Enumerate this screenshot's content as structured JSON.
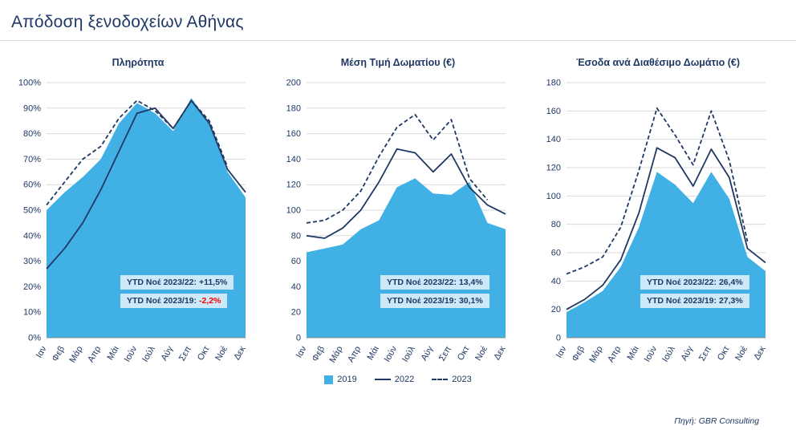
{
  "header": {
    "title": "Απόδοση ξενοδοχείων Αθήνας"
  },
  "months": [
    "Ιαν",
    "Φεβ",
    "Μάρ",
    "Απρ",
    "Μάι",
    "Ιούν",
    "Ιούλ",
    "Αύγ",
    "Σεπ",
    "Οκτ",
    "Νοέ",
    "Δεκ"
  ],
  "colors": {
    "navy": "#1F3864",
    "area_blue": "#41B0E5",
    "grid": "#D9D9D9",
    "annotation_bg": "#CBE9F9",
    "red": "#FF0000"
  },
  "legend": {
    "items": [
      {
        "label": "2019",
        "style": "area"
      },
      {
        "label": "2022",
        "style": "solid"
      },
      {
        "label": "2023",
        "style": "dashed"
      }
    ]
  },
  "footer": {
    "source": "Πηγή: GBR Consulting"
  },
  "chart_data": [
    {
      "type": "area",
      "name": "occupancy",
      "title": "Πληρότητα",
      "ymax": 100,
      "ylim": [
        0,
        100
      ],
      "grid": true,
      "yticks": [
        {
          "v": 0,
          "label": "0%"
        },
        {
          "v": 10,
          "label": "10%"
        },
        {
          "v": 20,
          "label": "20%"
        },
        {
          "v": 30,
          "label": "30%"
        },
        {
          "v": 40,
          "label": "40%"
        },
        {
          "v": 50,
          "label": "50%"
        },
        {
          "v": 60,
          "label": "60%"
        },
        {
          "v": 70,
          "label": "70%"
        },
        {
          "v": 80,
          "label": "80%"
        },
        {
          "v": 90,
          "label": "90%"
        },
        {
          "v": 100,
          "label": "100%"
        }
      ],
      "series": [
        {
          "name": "2019",
          "type": "area",
          "values": [
            50,
            57,
            63,
            70,
            84,
            92,
            88,
            81,
            94,
            84,
            65,
            55
          ]
        },
        {
          "name": "2022",
          "type": "line",
          "values": [
            27,
            35,
            45,
            58,
            73,
            88,
            90,
            82,
            93,
            84,
            66,
            57
          ]
        },
        {
          "name": "2023",
          "type": "dashed",
          "values": [
            52,
            61,
            70,
            75,
            86,
            93,
            89,
            82,
            93,
            85,
            67
          ]
        }
      ],
      "annotations": [
        {
          "label": "YTD Νοέ 2023/22:",
          "value": "+11,5%",
          "value_color": "#1F3864"
        },
        {
          "label": "YTD Νοέ 2023/19:",
          "value": "-2,2%",
          "value_color": "#FF0000"
        }
      ]
    },
    {
      "type": "area",
      "name": "adr",
      "title": "Μέση Τιμή Δωματίου (€)",
      "ymax": 200,
      "ylim": [
        0,
        200
      ],
      "grid": true,
      "yticks": [
        {
          "v": 0,
          "label": "0"
        },
        {
          "v": 20,
          "label": "20"
        },
        {
          "v": 40,
          "label": "40"
        },
        {
          "v": 60,
          "label": "60"
        },
        {
          "v": 80,
          "label": "80"
        },
        {
          "v": 100,
          "label": "100"
        },
        {
          "v": 120,
          "label": "120"
        },
        {
          "v": 140,
          "label": "140"
        },
        {
          "v": 160,
          "label": "160"
        },
        {
          "v": 180,
          "label": "180"
        },
        {
          "v": 200,
          "label": "200"
        }
      ],
      "series": [
        {
          "name": "2019",
          "type": "area",
          "values": [
            67,
            70,
            73,
            85,
            92,
            118,
            125,
            113,
            112,
            122,
            90,
            85
          ]
        },
        {
          "name": "2022",
          "type": "line",
          "values": [
            80,
            78,
            86,
            100,
            122,
            148,
            145,
            130,
            144,
            118,
            104,
            97
          ]
        },
        {
          "name": "2023",
          "type": "dashed",
          "values": [
            90,
            92,
            100,
            115,
            142,
            165,
            175,
            155,
            171,
            125,
            108
          ]
        }
      ],
      "annotations": [
        {
          "label": "YTD Νοέ 2023/22:",
          "value": "13,4%",
          "value_color": "#1F3864"
        },
        {
          "label": "YTD Νοέ 2023/19:",
          "value": "30,1%",
          "value_color": "#1F3864"
        }
      ]
    },
    {
      "type": "area",
      "name": "revpar",
      "title": "Έσοδα ανά Διαθέσιμο Δωμάτιο (€)",
      "ymax": 180,
      "ylim": [
        0,
        180
      ],
      "grid": true,
      "yticks": [
        {
          "v": 0,
          "label": "0"
        },
        {
          "v": 20,
          "label": "20"
        },
        {
          "v": 40,
          "label": "40"
        },
        {
          "v": 60,
          "label": "60"
        },
        {
          "v": 80,
          "label": "80"
        },
        {
          "v": 100,
          "label": "100"
        },
        {
          "v": 120,
          "label": "120"
        },
        {
          "v": 140,
          "label": "140"
        },
        {
          "v": 160,
          "label": "160"
        },
        {
          "v": 180,
          "label": "180"
        }
      ],
      "series": [
        {
          "name": "2019",
          "type": "area",
          "values": [
            18,
            25,
            33,
            50,
            78,
            117,
            108,
            95,
            117,
            98,
            57,
            47
          ]
        },
        {
          "name": "2022",
          "type": "line",
          "values": [
            20,
            27,
            37,
            55,
            88,
            134,
            127,
            107,
            133,
            113,
            63,
            53
          ]
        },
        {
          "name": "2023",
          "type": "dashed",
          "values": [
            45,
            50,
            57,
            78,
            118,
            162,
            143,
            122,
            160,
            125,
            68
          ]
        }
      ],
      "annotations": [
        {
          "label": "YTD Νοέ 2023/22:",
          "value": "26,4%",
          "value_color": "#1F3864"
        },
        {
          "label": "YTD Νοέ 2023/19:",
          "value": "27,3%",
          "value_color": "#1F3864"
        }
      ]
    }
  ]
}
